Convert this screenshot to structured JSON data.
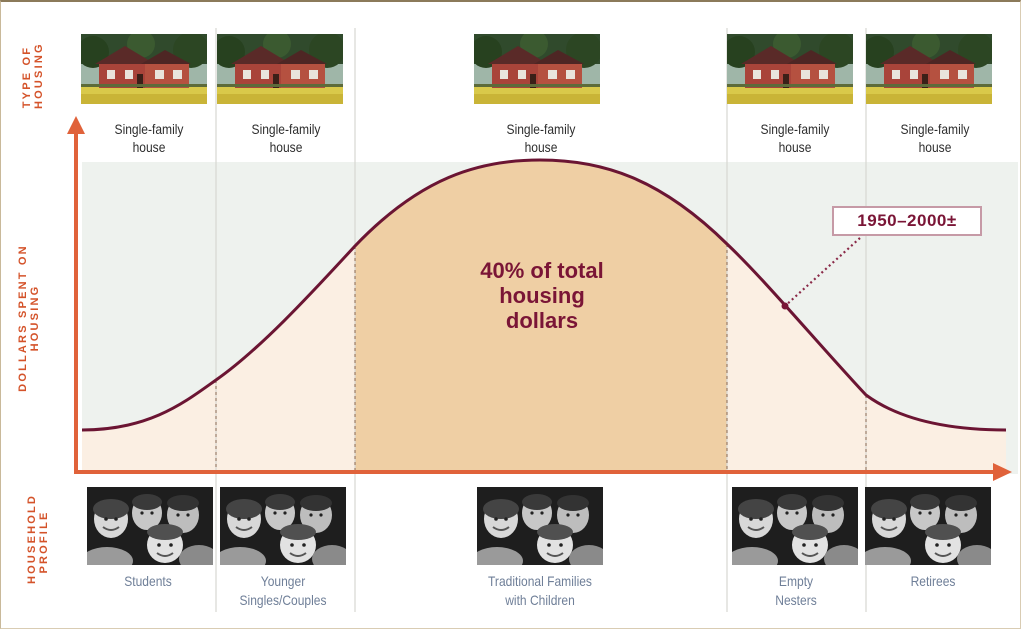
{
  "axis_titles": {
    "type_of_housing": "TYPE OF HOUSING",
    "dollars_spent": "DOLLARS SPENT ON HOUSING",
    "household_profile": "HOUSEHOLD PROFILE"
  },
  "stages": [
    {
      "housing": "Single-family house",
      "profile": "Students"
    },
    {
      "housing": "Single-family house",
      "profile": "Younger Singles/Couples"
    },
    {
      "housing": "Single-family house",
      "profile": "Traditional Families with Children"
    },
    {
      "housing": "Single-family house",
      "profile": "Empty Nesters"
    },
    {
      "housing": "Single-family house",
      "profile": "Retirees"
    }
  ],
  "curve_annotation": "40% of total housing dollars",
  "era_label": "1950–2000±",
  "colors": {
    "axis": "#e0623a",
    "curve": "#6b1533",
    "highlight_fill": "#efcfa4",
    "light_fill": "#fbeee1",
    "band": "#edf1ee",
    "annotation_text": "#7a1536"
  }
}
